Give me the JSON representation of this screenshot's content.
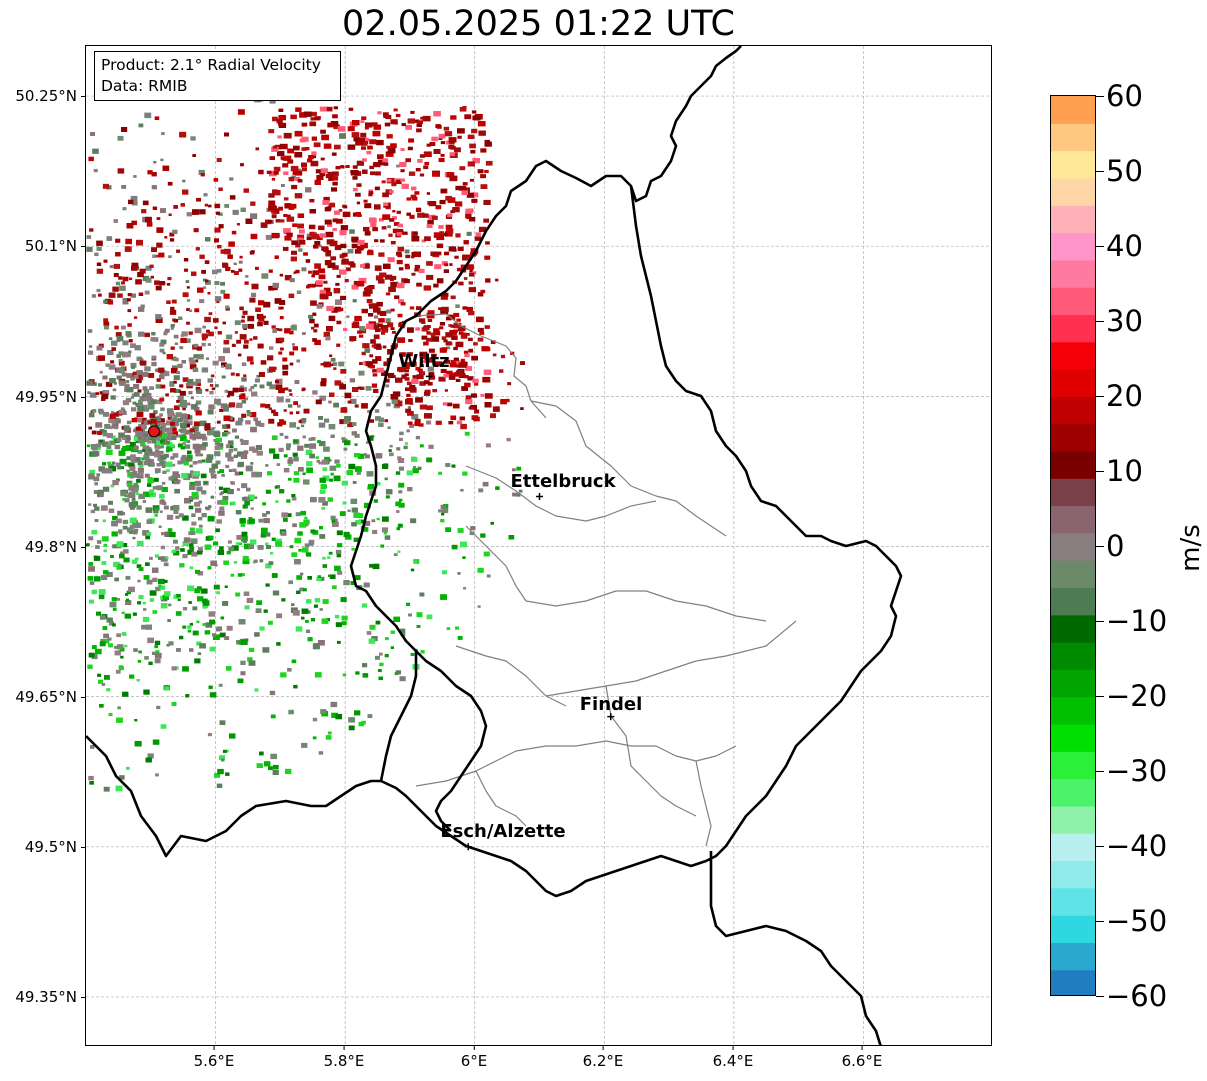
{
  "title": "02.05.2025 01:22 UTC",
  "info_box": {
    "product_line": "Product: 2.1° Radial Velocity",
    "data_line": "Data: RMIB"
  },
  "latitude_ticks": [
    "50.25°N",
    "50.1°N",
    "49.95°N",
    "49.8°N",
    "49.65°N",
    "49.5°N",
    "49.35°N"
  ],
  "longitude_ticks": [
    "5.6°E",
    "5.8°E",
    "6°E",
    "6.2°E",
    "6.4°E",
    "6.6°E"
  ],
  "cities": [
    {
      "name": "Wiltz",
      "lon": 5.93,
      "lat": 49.97
    },
    {
      "name": "Ettelbruck",
      "lon": 6.1,
      "lat": 49.85
    },
    {
      "name": "Findel",
      "lon": 6.21,
      "lat": 49.63
    },
    {
      "name": "Esch/Alzette",
      "lon": 5.99,
      "lat": 49.5
    }
  ],
  "radar_site": {
    "lon": 5.505,
    "lat": 49.915,
    "marker_color": "#e8141b"
  },
  "map_extent": {
    "lon_min": 5.4,
    "lon_max": 6.8,
    "lat_min": 49.3,
    "lat_max": 50.3
  },
  "colorbar": {
    "label": "m/s",
    "min": -60,
    "max": 60,
    "tick_labels": [
      "60",
      "50",
      "40",
      "30",
      "20",
      "10",
      "0",
      "−10",
      "−20",
      "−30",
      "−40",
      "−50",
      "−60"
    ],
    "colors": [
      "#1f7dc0",
      "#2aa9d0",
      "#2fd8e0",
      "#5fe3e6",
      "#8feaea",
      "#b8f0f0",
      "#8ef2a8",
      "#4cf26a",
      "#2bf03a",
      "#00e000",
      "#00c000",
      "#00a500",
      "#008a00",
      "#006a00",
      "#4d7c52",
      "#6a8a6a",
      "#8a7f80",
      "#8a6570",
      "#7a4048",
      "#7a0000",
      "#9e0000",
      "#c00000",
      "#e00000",
      "#f5000a",
      "#ff3050",
      "#ff5a78",
      "#ff7aa0",
      "#ff95c8",
      "#ffb0b8",
      "#ffd6a8",
      "#ffe898",
      "#ffc880",
      "#ffa050"
    ]
  },
  "gridlines": true
}
